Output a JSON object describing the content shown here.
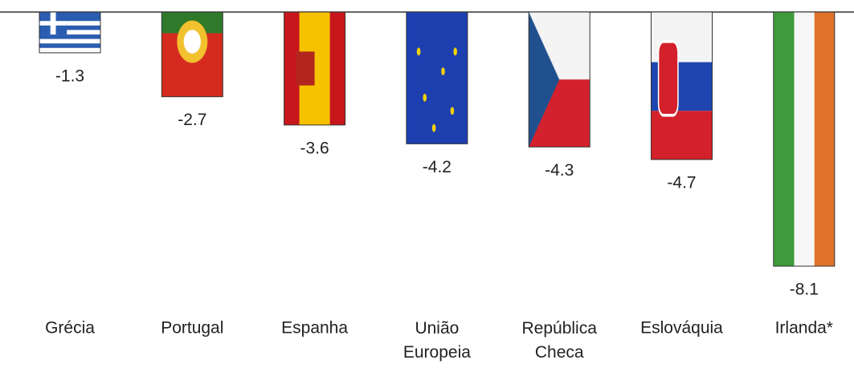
{
  "chart_data": {
    "type": "bar",
    "categories": [
      "Grécia",
      "Portugal",
      "Espanha",
      "União Europeia",
      "República Checa",
      "Eslováquia",
      "Irlanda*"
    ],
    "values": [
      -1.3,
      -2.7,
      -3.6,
      -4.2,
      -4.3,
      -4.7,
      -8.1
    ]
  }
}
